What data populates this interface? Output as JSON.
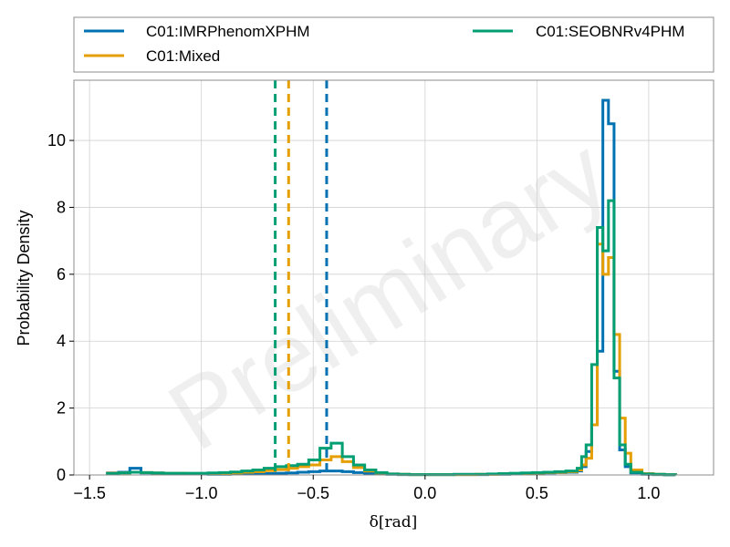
{
  "chart_data": {
    "type": "histogram",
    "title": "",
    "xlabel": "δ[rad]",
    "ylabel": "Probability Density",
    "watermark": "Preliminary",
    "xlim": [
      -1.57,
      1.29
    ],
    "ylim": [
      0,
      11.8
    ],
    "xticks": [
      -1.5,
      -1.0,
      -0.5,
      0.0,
      0.5,
      1.0
    ],
    "xtick_labels": [
      "−1.5",
      "−1.0",
      "−0.5",
      "0.0",
      "0.5",
      "1.0"
    ],
    "yticks": [
      0,
      2,
      4,
      6,
      8,
      10
    ],
    "ytick_labels": [
      "0",
      "2",
      "4",
      "6",
      "8",
      "10"
    ],
    "grid": true,
    "legend_placement": "top, above plot",
    "series": [
      {
        "name": "C01:IMRPhenomXPHM",
        "color": "#0072B2",
        "median": -0.44,
        "bins": [
          [
            -1.42,
            0.06
          ],
          [
            -1.37,
            0.08
          ],
          [
            -1.32,
            0.2
          ],
          [
            -1.27,
            0.06
          ],
          [
            -1.22,
            0.05
          ],
          [
            -1.17,
            0.04
          ],
          [
            -1.12,
            0.04
          ],
          [
            -1.07,
            0.03
          ],
          [
            -1.02,
            0.03
          ],
          [
            -0.97,
            0.02
          ],
          [
            -0.92,
            0.02
          ],
          [
            -0.87,
            0.03
          ],
          [
            -0.82,
            0.03
          ],
          [
            -0.77,
            0.04
          ],
          [
            -0.72,
            0.04
          ],
          [
            -0.67,
            0.05
          ],
          [
            -0.62,
            0.06
          ],
          [
            -0.57,
            0.08
          ],
          [
            -0.52,
            0.1
          ],
          [
            -0.47,
            0.12
          ],
          [
            -0.42,
            0.12
          ],
          [
            -0.37,
            0.1
          ],
          [
            -0.32,
            0.07
          ],
          [
            -0.27,
            0.05
          ],
          [
            -0.22,
            0.03
          ],
          [
            -0.17,
            0.02
          ],
          [
            -0.12,
            0.01
          ],
          [
            -0.07,
            0.01
          ],
          [
            -0.02,
            0.01
          ],
          [
            0.03,
            0.01
          ],
          [
            0.08,
            0.01
          ],
          [
            0.13,
            0.01
          ],
          [
            0.18,
            0.01
          ],
          [
            0.23,
            0.01
          ],
          [
            0.28,
            0.02
          ],
          [
            0.33,
            0.02
          ],
          [
            0.38,
            0.03
          ],
          [
            0.43,
            0.04
          ],
          [
            0.48,
            0.05
          ],
          [
            0.53,
            0.06
          ],
          [
            0.58,
            0.07
          ],
          [
            0.63,
            0.08
          ],
          [
            0.68,
            0.12
          ],
          [
            0.7,
            0.25
          ],
          [
            0.72,
            0.7
          ],
          [
            0.745,
            1.5
          ],
          [
            0.77,
            3.7
          ],
          [
            0.795,
            11.2
          ],
          [
            0.82,
            10.5
          ],
          [
            0.845,
            3.1
          ],
          [
            0.87,
            0.75
          ],
          [
            0.895,
            0.25
          ],
          [
            0.92,
            0.06
          ],
          [
            0.97,
            0.02
          ],
          [
            1.02,
            0.01
          ],
          [
            1.07,
            0.005
          ],
          [
            1.12,
            0.0
          ]
        ]
      },
      {
        "name": "C01:Mixed",
        "color": "#E69F00",
        "median": -0.61,
        "bins": [
          [
            -1.42,
            0.05
          ],
          [
            -1.37,
            0.06
          ],
          [
            -1.32,
            0.08
          ],
          [
            -1.27,
            0.07
          ],
          [
            -1.22,
            0.06
          ],
          [
            -1.17,
            0.05
          ],
          [
            -1.12,
            0.05
          ],
          [
            -1.07,
            0.04
          ],
          [
            -1.02,
            0.04
          ],
          [
            -0.97,
            0.04
          ],
          [
            -0.92,
            0.05
          ],
          [
            -0.87,
            0.06
          ],
          [
            -0.82,
            0.08
          ],
          [
            -0.77,
            0.1
          ],
          [
            -0.72,
            0.13
          ],
          [
            -0.67,
            0.16
          ],
          [
            -0.62,
            0.2
          ],
          [
            -0.57,
            0.25
          ],
          [
            -0.52,
            0.3
          ],
          [
            -0.47,
            0.45
          ],
          [
            -0.42,
            0.55
          ],
          [
            -0.37,
            0.4
          ],
          [
            -0.32,
            0.22
          ],
          [
            -0.27,
            0.12
          ],
          [
            -0.22,
            0.06
          ],
          [
            -0.17,
            0.03
          ],
          [
            -0.12,
            0.02
          ],
          [
            -0.07,
            0.01
          ],
          [
            -0.02,
            0.01
          ],
          [
            0.03,
            0.01
          ],
          [
            0.08,
            0.01
          ],
          [
            0.13,
            0.01
          ],
          [
            0.18,
            0.01
          ],
          [
            0.23,
            0.02
          ],
          [
            0.28,
            0.02
          ],
          [
            0.33,
            0.03
          ],
          [
            0.38,
            0.04
          ],
          [
            0.43,
            0.05
          ],
          [
            0.48,
            0.06
          ],
          [
            0.53,
            0.07
          ],
          [
            0.58,
            0.08
          ],
          [
            0.63,
            0.1
          ],
          [
            0.68,
            0.15
          ],
          [
            0.7,
            0.3
          ],
          [
            0.72,
            0.5
          ],
          [
            0.745,
            1.5
          ],
          [
            0.77,
            6.9
          ],
          [
            0.795,
            6.0
          ],
          [
            0.82,
            6.5
          ],
          [
            0.845,
            4.2
          ],
          [
            0.87,
            1.7
          ],
          [
            0.895,
            0.65
          ],
          [
            0.92,
            0.15
          ],
          [
            0.97,
            0.04
          ],
          [
            1.02,
            0.02
          ],
          [
            1.07,
            0.01
          ],
          [
            1.12,
            0.0
          ]
        ]
      },
      {
        "name": "C01:SEOBNRv4PHM",
        "color": "#009E73",
        "median": -0.67,
        "bins": [
          [
            -1.42,
            0.04
          ],
          [
            -1.37,
            0.06
          ],
          [
            -1.32,
            0.08
          ],
          [
            -1.27,
            0.07
          ],
          [
            -1.22,
            0.06
          ],
          [
            -1.17,
            0.05
          ],
          [
            -1.12,
            0.05
          ],
          [
            -1.07,
            0.05
          ],
          [
            -1.02,
            0.05
          ],
          [
            -0.97,
            0.06
          ],
          [
            -0.92,
            0.07
          ],
          [
            -0.87,
            0.09
          ],
          [
            -0.82,
            0.12
          ],
          [
            -0.77,
            0.15
          ],
          [
            -0.72,
            0.2
          ],
          [
            -0.67,
            0.25
          ],
          [
            -0.62,
            0.28
          ],
          [
            -0.57,
            0.32
          ],
          [
            -0.52,
            0.45
          ],
          [
            -0.47,
            0.8
          ],
          [
            -0.42,
            0.95
          ],
          [
            -0.37,
            0.55
          ],
          [
            -0.32,
            0.3
          ],
          [
            -0.27,
            0.15
          ],
          [
            -0.22,
            0.07
          ],
          [
            -0.17,
            0.03
          ],
          [
            -0.12,
            0.02
          ],
          [
            -0.07,
            0.01
          ],
          [
            -0.02,
            0.01
          ],
          [
            0.03,
            0.01
          ],
          [
            0.08,
            0.01
          ],
          [
            0.13,
            0.02
          ],
          [
            0.18,
            0.02
          ],
          [
            0.23,
            0.02
          ],
          [
            0.28,
            0.03
          ],
          [
            0.33,
            0.04
          ],
          [
            0.38,
            0.05
          ],
          [
            0.43,
            0.06
          ],
          [
            0.48,
            0.07
          ],
          [
            0.53,
            0.08
          ],
          [
            0.58,
            0.1
          ],
          [
            0.63,
            0.12
          ],
          [
            0.68,
            0.2
          ],
          [
            0.7,
            0.55
          ],
          [
            0.72,
            0.9
          ],
          [
            0.745,
            3.3
          ],
          [
            0.77,
            7.4
          ],
          [
            0.795,
            6.7
          ],
          [
            0.82,
            8.2
          ],
          [
            0.845,
            2.9
          ],
          [
            0.87,
            0.9
          ],
          [
            0.895,
            0.32
          ],
          [
            0.92,
            0.08
          ],
          [
            0.97,
            0.03
          ],
          [
            1.02,
            0.02
          ],
          [
            1.07,
            0.01
          ],
          [
            1.12,
            0.0
          ]
        ]
      }
    ]
  }
}
